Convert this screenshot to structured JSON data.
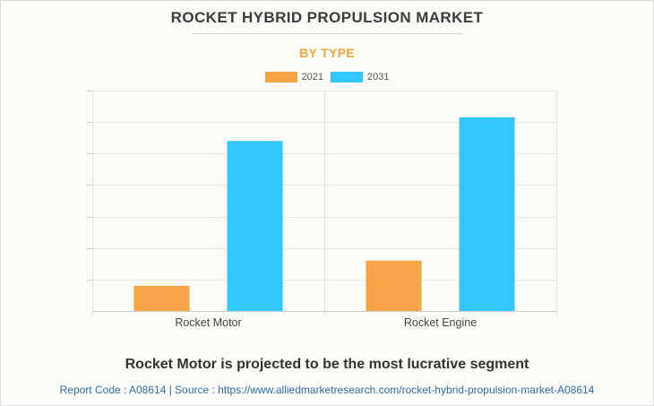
{
  "chart_data": {
    "type": "bar",
    "title": "ROCKET HYBRID PROPULSION MARKET",
    "subtitle": "BY TYPE",
    "categories": [
      "Rocket Motor",
      "Rocket Engine"
    ],
    "series": [
      {
        "name": "2021",
        "color": "#f5a547",
        "values": [
          8,
          16
        ]
      },
      {
        "name": "2031",
        "color": "#33c7ff",
        "values": [
          54,
          61.5
        ]
      }
    ],
    "ylim": [
      0,
      70
    ],
    "y_gridlines": 7,
    "y_tick_labels_shown": false,
    "grid": true,
    "legend_position": "top-center"
  },
  "footer": {
    "note": "Rocket Motor is projected to be the most lucrative segment",
    "source": "Report Code : A08614  |  Source : https://www.alliedmarketresearch.com/rocket-hybrid-propulsion-market-A08614"
  }
}
